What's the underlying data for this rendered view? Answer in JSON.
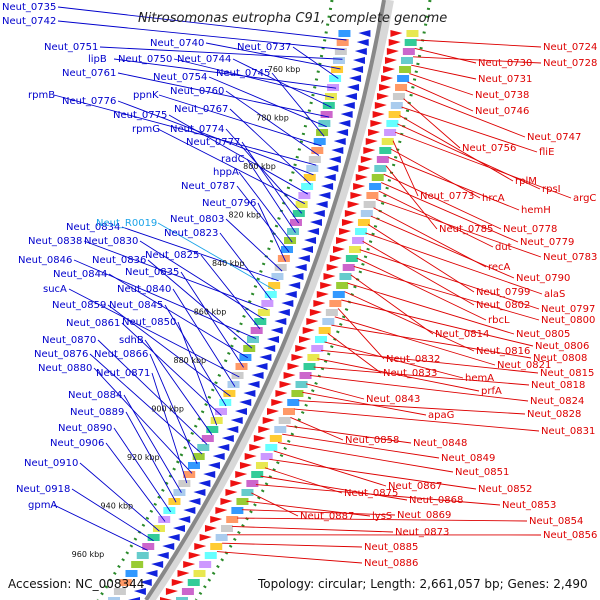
{
  "title": "Nitrosomonas eutropha C91, complete genome",
  "footer": {
    "accession": "Accession: NC_008344",
    "topology": "Topology: circular; Length: 2,661,057 bp; Genes: 2,490"
  },
  "colors": {
    "left": "#0000cc",
    "right": "#dd0000",
    "rna": "#1aa3e8"
  },
  "kbp_ticks": [
    "760 kbp",
    "780 kbp",
    "800 kbp",
    "820 kbp",
    "840 kbp",
    "860 kbp",
    "880 kbp",
    "900 kbp",
    "920 kbp",
    "940 kbp",
    "960 kbp"
  ],
  "left_labels": [
    "Neut_0735",
    "Neut_0742",
    "Neut_0751",
    "Neut_0740",
    "Neut_0737",
    "lipB",
    "Neut_0750",
    "Neut_0744",
    "Neut_0761",
    "Neut_0754",
    "Neut_0745",
    "ppnK",
    "Neut_0760",
    "rpmB",
    "Neut_0776",
    "Neut_0767",
    "Neut_0775",
    "rpmG",
    "Neut_0774",
    "Neut_0777",
    "radC",
    "hppA",
    "Neut_0787",
    "Neut_0796",
    "Neut_0803",
    "Neut_0834",
    "Neut_R0019",
    "Neut_0823",
    "Neut_0838",
    "Neut_0830",
    "Neut_0825",
    "Neut_0846",
    "Neut_0836",
    "Neut_0844",
    "Neut_0835",
    "sucA",
    "Neut_0840",
    "Neut_0859",
    "Neut_0845",
    "Neut_0861",
    "Neut_0850",
    "sdhB",
    "Neut_0870",
    "Neut_0876",
    "Neut_0866",
    "Neut_0880",
    "Neut_0871",
    "Neut_0884",
    "Neut_0889",
    "Neut_0890",
    "Neut_0906",
    "Neut_0910",
    "Neut_0918",
    "gpmA"
  ],
  "right_labels": [
    "Neut_0724",
    "Neut_0730",
    "Neut_0728",
    "Neut_0731",
    "Neut_0738",
    "Neut_0746",
    "Neut_0747",
    "Neut_0756",
    "fliE",
    "rplM",
    "rpsI",
    "argC",
    "Neut_0773",
    "hrcA",
    "hemH",
    "Neut_0785",
    "Neut_0778",
    "Neut_0779",
    "dut",
    "Neut_0783",
    "recA",
    "Neut_0790",
    "Neut_0799",
    "alaS",
    "Neut_0802",
    "Neut_0797",
    "rbcL",
    "Neut_0800",
    "Neut_0814",
    "Neut_0805",
    "Neut_0816",
    "Neut_0806",
    "Neut_0832",
    "Neut_0821",
    "Neut_0808",
    "Neut_0833",
    "hemA",
    "Neut_0815",
    "prfA",
    "Neut_0818",
    "Neut_0824",
    "Neut_0843",
    "apaG",
    "Neut_0828",
    "Neut_0831",
    "Neut_0858",
    "Neut_0848",
    "Neut_0849",
    "Neut_0851",
    "Neut_0867",
    "Neut_0852",
    "Neut_0875",
    "Neut_0868",
    "Neut_0853",
    "Neut_0887",
    "lysS",
    "Neut_0869",
    "Neut_0854",
    "Neut_0873",
    "Neut_0856",
    "Neut_0885",
    "Neut_0886"
  ]
}
